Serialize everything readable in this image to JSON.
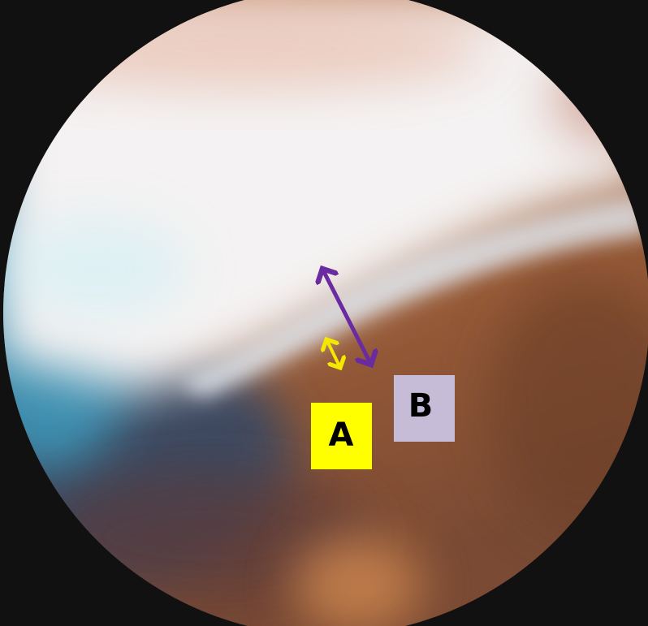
{
  "labels": {
    "a": "A",
    "b": "B"
  }
}
